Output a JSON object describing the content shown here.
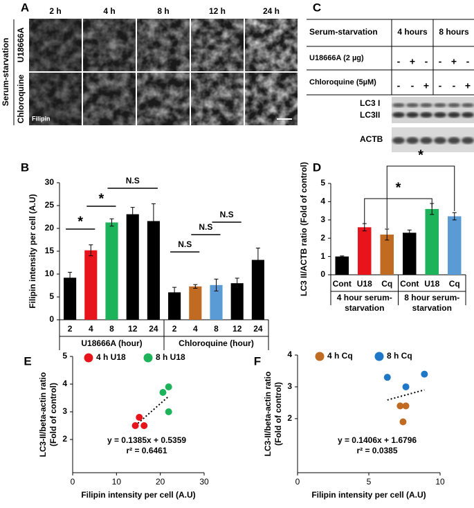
{
  "panel_labels": [
    "A",
    "B",
    "C",
    "D",
    "E",
    "F"
  ],
  "panel_a": {
    "times": [
      "2 h",
      "4 h",
      "8 h",
      "12 h",
      "24 h"
    ],
    "group_label": "Serum-starvation",
    "rows": [
      "U18666A",
      "Chloroquine"
    ],
    "image_label": "Filipin"
  },
  "panel_c": {
    "header": [
      "Serum-starvation",
      "4 hours",
      "8 hours"
    ],
    "rows": [
      {
        "label": "U18666A (2 µg)",
        "cells": [
          "-",
          "+",
          "-",
          "-",
          "+",
          "-"
        ]
      },
      {
        "label": "Chloroquine  (5µM)",
        "cells": [
          "-",
          "-",
          "+",
          "-",
          "-",
          "+"
        ]
      }
    ],
    "blot_labels": [
      "LC3 I",
      "LC3II",
      "ACTB"
    ]
  },
  "chart_data": [
    {
      "type": "bar",
      "ylabel": "Filipin intensity per cell (A.U)",
      "categories": [
        "2",
        "4",
        "8",
        "12",
        "24",
        "2",
        "4",
        "8",
        "12",
        "24"
      ],
      "values": [
        9.2,
        15.2,
        21.3,
        23.1,
        21.6,
        6.0,
        7.3,
        7.6,
        8.0,
        13.1
      ],
      "errors": [
        1.2,
        1.2,
        0.8,
        1.5,
        3.8,
        1.1,
        0.4,
        1.3,
        1.1,
        2.6
      ],
      "colors": [
        "#000000",
        "#e8141b",
        "#1db35a",
        "#000000",
        "#000000",
        "#000000",
        "#c06a22",
        "#5b9bd5",
        "#000000",
        "#000000"
      ],
      "group_labels": [
        "U18666A (hour)",
        "Chloroquine (hour)"
      ],
      "annotations": [
        "*",
        "*",
        "N.S",
        "N.S",
        "N.S",
        "N.S"
      ],
      "ylim": [
        0,
        30
      ],
      "yticks": [
        0,
        5,
        10,
        15,
        20,
        25,
        30
      ]
    },
    {
      "type": "bar",
      "ylabel": "LC3 II/ACTB ratio (Fold of control)",
      "categories": [
        "Cont",
        "U18",
        "Cq",
        "Cont",
        "U18",
        "Cq"
      ],
      "values": [
        1.0,
        2.6,
        2.2,
        2.3,
        3.6,
        3.2
      ],
      "errors": [
        0.03,
        0.2,
        0.3,
        0.15,
        0.3,
        0.2
      ],
      "colors": [
        "#000000",
        "#e8141b",
        "#c06a22",
        "#000000",
        "#1db35a",
        "#5b9bd5"
      ],
      "group_labels": [
        [
          "4 hour serum-",
          "starvation"
        ],
        [
          "8 hour serum-",
          "starvation"
        ]
      ],
      "annotations": [
        "*",
        "*"
      ],
      "ylim": [
        0,
        5
      ],
      "yticks": [
        0,
        1,
        2,
        3,
        4,
        5
      ]
    },
    {
      "type": "scatter",
      "ylabel": [
        "LC3-II/beta-actin ratio",
        "(Fold of control)"
      ],
      "xlabel": "Filipin intensity per cell (A.U)",
      "series": [
        {
          "name": "4 h U18",
          "color": "#e8141b",
          "x": [
            14.3,
            15.2,
            16.3
          ],
          "values": [
            2.5,
            2.8,
            2.5
          ]
        },
        {
          "name": "8 h U18",
          "color": "#1db35a",
          "x": [
            20.6,
            21.9,
            21.9
          ],
          "values": [
            3.7,
            3.9,
            3.0
          ]
        }
      ],
      "annotations": [
        "y = 0.1385x + 0.5359",
        "r² = 0.6461"
      ],
      "xlim": [
        0,
        30
      ],
      "xticks": [
        0,
        10,
        20,
        30
      ],
      "ylim": [
        0.8,
        5
      ],
      "yticks": [
        2,
        3,
        4,
        5
      ]
    },
    {
      "type": "scatter",
      "ylabel": [
        "LC3-II/beta-actin ratio",
        "(Fold of control)"
      ],
      "xlabel": "Filipin intensity per cell (A.U)",
      "series": [
        {
          "name": "4 h Cq",
          "color": "#c06a22",
          "x": [
            7.2,
            7.6,
            7.4
          ],
          "values": [
            2.4,
            2.4,
            1.9
          ]
        },
        {
          "name": "8 h Cq",
          "color": "#1f77c8",
          "x": [
            6.3,
            7.6,
            8.9
          ],
          "values": [
            3.3,
            3.0,
            3.4
          ]
        }
      ],
      "annotations": [
        "y = 0.1406x + 1.6796",
        "r² = 0.0385"
      ],
      "xlim": [
        0,
        10
      ],
      "xticks": [
        0,
        5,
        10
      ],
      "ylim": [
        0.3,
        4
      ],
      "yticks": [
        2,
        3,
        4
      ]
    }
  ]
}
